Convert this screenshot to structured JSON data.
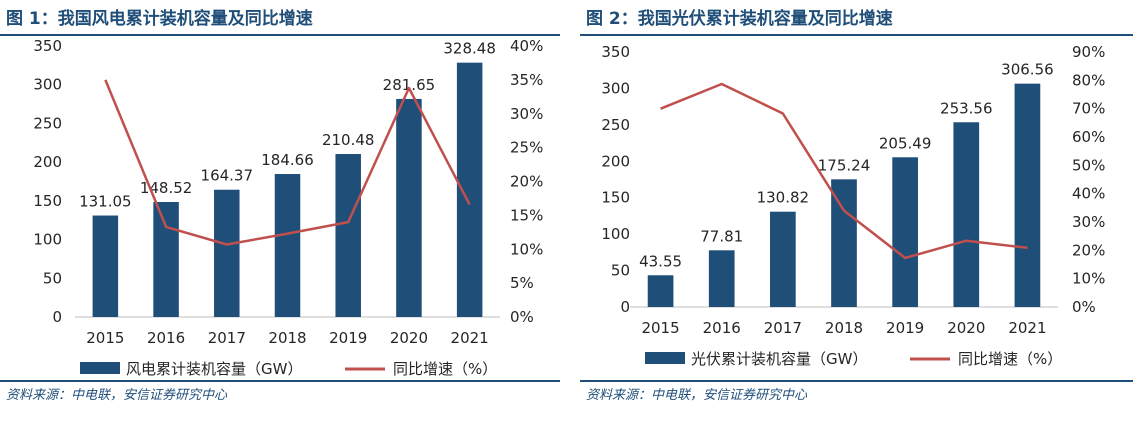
{
  "colors": {
    "bar": "#1f4e79",
    "line": "#c0504d",
    "title": "#1f4e79"
  },
  "charts": [
    {
      "title": "图 1：我国风电累计装机容量及同比增速",
      "source": "资料来源：中电联，安信证券研究中心"
    },
    {
      "title": "图 2：我国光伏累计装机容量及同比增速",
      "source": "资料来源：中电联，安信证券研究中心"
    }
  ],
  "chart_data": [
    {
      "type": "bar",
      "categories": [
        "2015",
        "2016",
        "2017",
        "2018",
        "2019",
        "2020",
        "2021"
      ],
      "series": [
        {
          "name": "风电累计装机容量（GW）",
          "type": "bar",
          "axis": "left",
          "values": [
            131.05,
            148.52,
            164.37,
            184.66,
            210.48,
            281.65,
            328.48
          ],
          "labels": [
            "131.05",
            "148.52",
            "164.37",
            "184.66",
            "210.48",
            "281.65",
            "328.48"
          ]
        },
        {
          "name": "同比增速（%）",
          "type": "line",
          "axis": "right",
          "values": [
            35.0,
            13.3,
            10.7,
            12.3,
            14.0,
            33.8,
            16.6
          ]
        }
      ],
      "y_left": {
        "min": 0,
        "max": 350,
        "ticks": [
          "0",
          "50",
          "100",
          "150",
          "200",
          "250",
          "300",
          "350"
        ]
      },
      "y_right": {
        "min": 0,
        "max": 40,
        "ticks": [
          "0%",
          "5%",
          "10%",
          "15%",
          "20%",
          "25%",
          "30%",
          "35%",
          "40%"
        ]
      },
      "legend_position": "bottom",
      "grid": false
    },
    {
      "type": "bar",
      "categories": [
        "2015",
        "2016",
        "2017",
        "2018",
        "2019",
        "2020",
        "2021"
      ],
      "series": [
        {
          "name": "光伏累计装机容量（GW）",
          "type": "bar",
          "axis": "left",
          "values": [
            43.55,
            77.81,
            130.82,
            175.24,
            205.49,
            253.56,
            306.56
          ],
          "labels": [
            "43.55",
            "77.81",
            "130.82",
            "175.24",
            "205.49",
            "253.56",
            "306.56"
          ]
        },
        {
          "name": "同比增速（%）",
          "type": "line",
          "axis": "right",
          "values": [
            70.0,
            78.7,
            68.3,
            34.0,
            17.3,
            23.4,
            20.9
          ]
        }
      ],
      "y_left": {
        "min": 0,
        "max": 350,
        "ticks": [
          "0",
          "50",
          "100",
          "150",
          "200",
          "250",
          "300",
          "350"
        ]
      },
      "y_right": {
        "min": 0,
        "max": 90,
        "ticks": [
          "0%",
          "10%",
          "20%",
          "30%",
          "40%",
          "50%",
          "60%",
          "70%",
          "80%",
          "90%"
        ]
      },
      "legend_position": "bottom",
      "grid": false
    }
  ]
}
